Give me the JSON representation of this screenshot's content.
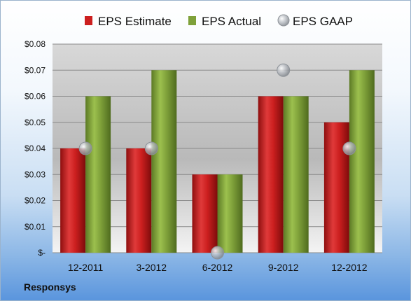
{
  "company": "Responsys",
  "colors": {
    "estimate": "#cc1f1f",
    "actual": "#7fa13a",
    "gaap": "#b8bcc2"
  },
  "chart_data": {
    "type": "bar",
    "categories": [
      "12-2011",
      "3-2012",
      "6-2012",
      "9-2012",
      "12-2012"
    ],
    "series": [
      {
        "name": "EPS Estimate",
        "type": "bar",
        "values": [
          0.04,
          0.04,
          0.03,
          0.06,
          0.05
        ]
      },
      {
        "name": "EPS Actual",
        "type": "bar",
        "values": [
          0.06,
          0.07,
          0.03,
          0.06,
          0.07
        ]
      },
      {
        "name": "EPS GAAP",
        "type": "scatter",
        "values": [
          0.04,
          0.04,
          0.0,
          0.07,
          0.04
        ]
      }
    ],
    "ylim": [
      0,
      0.08
    ],
    "yticks": [
      0,
      0.01,
      0.02,
      0.03,
      0.04,
      0.05,
      0.06,
      0.07,
      0.08
    ],
    "ytick_labels": [
      "$-",
      "$0.01",
      "$0.02",
      "$0.03",
      "$0.04",
      "$0.05",
      "$0.06",
      "$0.07",
      "$0.08"
    ],
    "grid": true,
    "legend": "top"
  }
}
